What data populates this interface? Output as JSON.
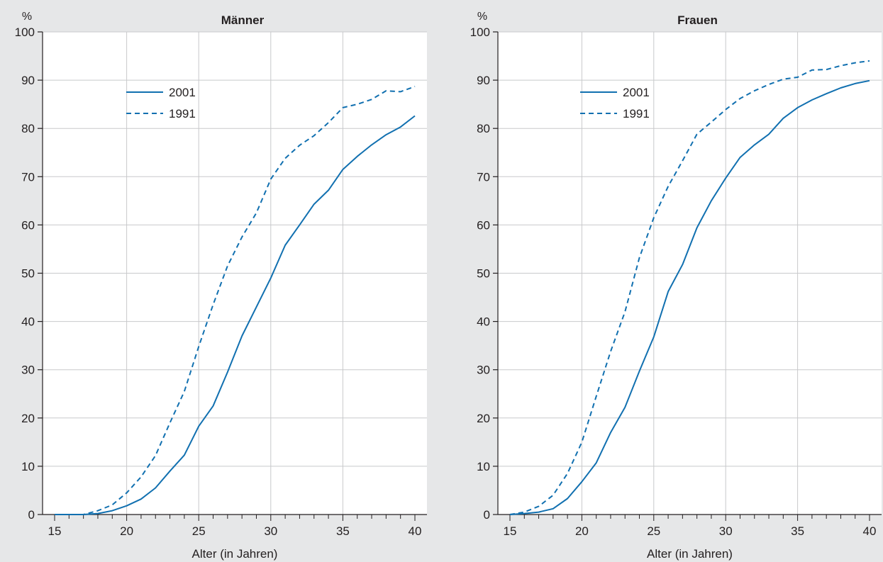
{
  "colors": {
    "background": "#e6e7e8",
    "plot_background": "#ffffff",
    "grid": "#c8c9cb",
    "axis": "#231f20",
    "series": "#1170b0"
  },
  "chart_data": [
    {
      "type": "line",
      "title": "Männer",
      "ylabel": "%",
      "xlabel": "Alter (in Jahren)",
      "xlim": [
        15,
        40
      ],
      "ylim": [
        0,
        100
      ],
      "x_ticks": [
        15,
        20,
        25,
        30,
        35,
        40
      ],
      "y_ticks": [
        0,
        10,
        20,
        30,
        40,
        50,
        60,
        70,
        80,
        90,
        100
      ],
      "grid": true,
      "legend_position": "upper-left",
      "x": [
        15,
        16,
        17,
        18,
        19,
        20,
        21,
        22,
        23,
        24,
        25,
        26,
        27,
        28,
        29,
        30,
        31,
        32,
        33,
        34,
        35,
        36,
        37,
        38,
        39,
        40
      ],
      "series": [
        {
          "name": "2001",
          "style": "solid",
          "values": [
            0,
            0,
            0,
            0.2,
            0.8,
            1.8,
            3.2,
            5.5,
            9,
            12.3,
            18.3,
            22.5,
            29.5,
            37,
            43,
            49,
            55.8,
            60,
            64.3,
            67.2,
            71.5,
            74.2,
            76.6,
            78.7,
            80.3,
            82.6
          ]
        },
        {
          "name": "1991",
          "style": "dashed",
          "values": [
            0,
            0,
            0,
            0.8,
            2,
            4.5,
            7.8,
            12.2,
            19,
            25.5,
            34.8,
            43.5,
            51.5,
            57.5,
            62.5,
            69.5,
            73.8,
            76.5,
            78.5,
            81.2,
            84.3,
            85,
            86,
            87.8,
            87.6,
            88.7
          ]
        }
      ]
    },
    {
      "type": "line",
      "title": "Frauen",
      "ylabel": "%",
      "xlabel": "Alter (in Jahren)",
      "xlim": [
        15,
        40
      ],
      "ylim": [
        0,
        100
      ],
      "x_ticks": [
        15,
        20,
        25,
        30,
        35,
        40
      ],
      "y_ticks": [
        0,
        10,
        20,
        30,
        40,
        50,
        60,
        70,
        80,
        90,
        100
      ],
      "grid": true,
      "legend_position": "upper-left",
      "x": [
        15,
        16,
        17,
        18,
        19,
        20,
        21,
        22,
        23,
        24,
        25,
        26,
        27,
        28,
        29,
        30,
        31,
        32,
        33,
        34,
        35,
        36,
        37,
        38,
        39,
        40
      ],
      "series": [
        {
          "name": "2001",
          "style": "solid",
          "values": [
            0,
            0.2,
            0.5,
            1.2,
            3.3,
            6.8,
            10.7,
            17,
            22.2,
            29.7,
            36.8,
            46.2,
            51.8,
            59.4,
            65,
            69.7,
            74,
            76.6,
            78.8,
            82.1,
            84.3,
            85.9,
            87.2,
            88.4,
            89.3,
            89.9
          ]
        },
        {
          "name": "1991",
          "style": "dashed",
          "values": [
            0,
            0.5,
            1.7,
            4,
            8.5,
            15,
            24.5,
            33.8,
            42,
            53.2,
            61.5,
            68,
            73.3,
            78.8,
            81.3,
            83.9,
            86.2,
            87.8,
            89.1,
            90.2,
            90.6,
            92.1,
            92.2,
            93,
            93.6,
            94
          ]
        }
      ]
    }
  ]
}
